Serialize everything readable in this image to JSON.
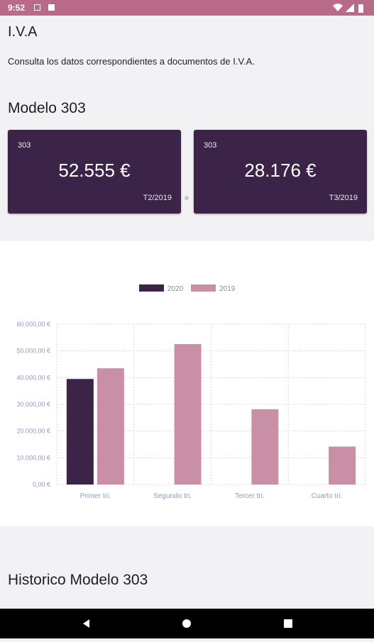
{
  "status_bar": {
    "time": "9:52"
  },
  "page": {
    "title": "I.V.A",
    "subtitle": "Consulta los datos correspondientes a documentos de I.V.A."
  },
  "modelo303": {
    "heading": "Modelo 303",
    "cards": [
      {
        "label": "303",
        "amount": "52.555 €",
        "period": "T2/2019"
      },
      {
        "label": "303",
        "amount": "28.176 €",
        "period": "T3/2019"
      }
    ]
  },
  "historico": {
    "heading": "Historico Modelo 303"
  },
  "colors": {
    "series_2020": "#3b2448",
    "series_2019": "#c98fa6",
    "status_bar": "#b86a86"
  },
  "chart_data": {
    "type": "bar",
    "categories": [
      "Primer tri.",
      "Segundo tri.",
      "Tercer tri.",
      "Cuarto tri."
    ],
    "series": [
      {
        "name": "2020",
        "values": [
          39500,
          0,
          0,
          0
        ]
      },
      {
        "name": "2019",
        "values": [
          43500,
          52555,
          28176,
          14200
        ]
      }
    ],
    "ylim": [
      0,
      60000
    ],
    "yticks": [
      0,
      10000,
      20000,
      30000,
      40000,
      50000,
      60000
    ],
    "ytick_labels": [
      "0,00 €",
      "10.000,00 €",
      "20.000,00 €",
      "30.000,00 €",
      "40.000,00 €",
      "50.000,00 €",
      "60.000,00 €"
    ],
    "legend_position": "top-center",
    "grid": true
  }
}
